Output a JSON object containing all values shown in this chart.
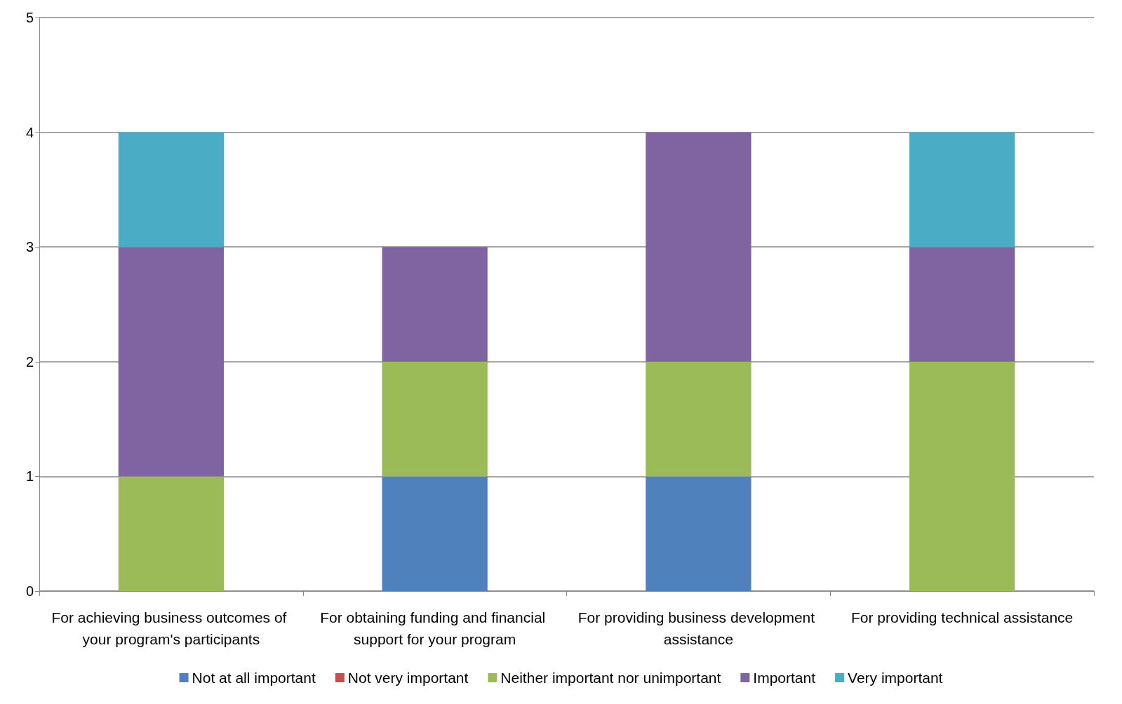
{
  "chart_data": {
    "type": "bar",
    "stacked": true,
    "categories": [
      "For achieving business outcomes of your program's participants",
      "For obtaining funding and financial support for your program",
      "For providing business development assistance",
      "For providing technical assistance"
    ],
    "series": [
      {
        "name": "Not at all important",
        "color": "#4f81bd",
        "values": [
          0,
          1,
          1,
          0
        ]
      },
      {
        "name": "Not very important",
        "color": "#c0504d",
        "values": [
          0,
          0,
          0,
          0
        ]
      },
      {
        "name": "Neither important nor unimportant",
        "color": "#9bbb59",
        "values": [
          1,
          1,
          1,
          2
        ]
      },
      {
        "name": "Important",
        "color": "#8064a2",
        "values": [
          2,
          1,
          2,
          1
        ]
      },
      {
        "name": "Very important",
        "color": "#4bacc6",
        "values": [
          1,
          0,
          0,
          1
        ]
      }
    ],
    "ylim": [
      0,
      5
    ],
    "yticks": [
      0,
      1,
      2,
      3,
      4,
      5
    ],
    "grid": "y",
    "legend": "bottom"
  }
}
